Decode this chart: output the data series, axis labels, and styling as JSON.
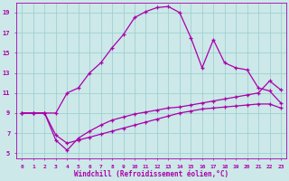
{
  "xlabel": "Windchill (Refroidissement éolien,°C)",
  "background_color": "#cce8e8",
  "line_color": "#aa00aa",
  "grid_color": "#99cccc",
  "xlim": [
    -0.5,
    23.5
  ],
  "ylim": [
    4.5,
    20.0
  ],
  "xticks": [
    0,
    1,
    2,
    3,
    4,
    5,
    6,
    7,
    8,
    9,
    10,
    11,
    12,
    13,
    14,
    15,
    16,
    17,
    18,
    19,
    20,
    21,
    22,
    23
  ],
  "yticks": [
    5,
    7,
    9,
    11,
    13,
    15,
    17,
    19
  ],
  "line1_x": [
    0,
    1,
    2,
    3,
    4,
    5,
    6,
    7,
    8,
    9,
    10,
    11,
    12,
    13,
    14,
    15,
    16,
    17,
    18,
    19,
    20,
    21,
    22,
    23
  ],
  "line1_y": [
    9,
    9,
    9,
    9,
    11,
    11.5,
    13,
    14,
    15.5,
    16.8,
    18.5,
    19.1,
    19.5,
    19.6,
    19.0,
    16.5,
    13.5,
    16.3,
    14.0,
    13.5,
    13.3,
    11.5,
    11.2,
    10.0
  ],
  "line2_x": [
    0,
    1,
    2,
    3,
    4,
    5,
    6,
    7,
    8,
    9,
    10,
    11,
    12,
    13,
    14,
    15,
    16,
    17,
    18,
    19,
    20,
    21,
    22,
    23
  ],
  "line2_y": [
    9,
    9,
    9,
    6.3,
    5.3,
    6.5,
    7.2,
    7.8,
    8.3,
    8.6,
    8.9,
    9.1,
    9.3,
    9.5,
    9.6,
    9.8,
    10.0,
    10.2,
    10.4,
    10.6,
    10.8,
    11.0,
    12.2,
    11.3
  ],
  "line3_x": [
    0,
    1,
    2,
    3,
    4,
    5,
    6,
    7,
    8,
    9,
    10,
    11,
    12,
    13,
    14,
    15,
    16,
    17,
    18,
    19,
    20,
    21,
    22,
    23
  ],
  "line3_y": [
    9,
    9,
    9,
    6.8,
    6.0,
    6.3,
    6.6,
    6.9,
    7.2,
    7.5,
    7.8,
    8.1,
    8.4,
    8.7,
    9.0,
    9.2,
    9.4,
    9.5,
    9.6,
    9.7,
    9.8,
    9.9,
    9.9,
    9.5
  ]
}
